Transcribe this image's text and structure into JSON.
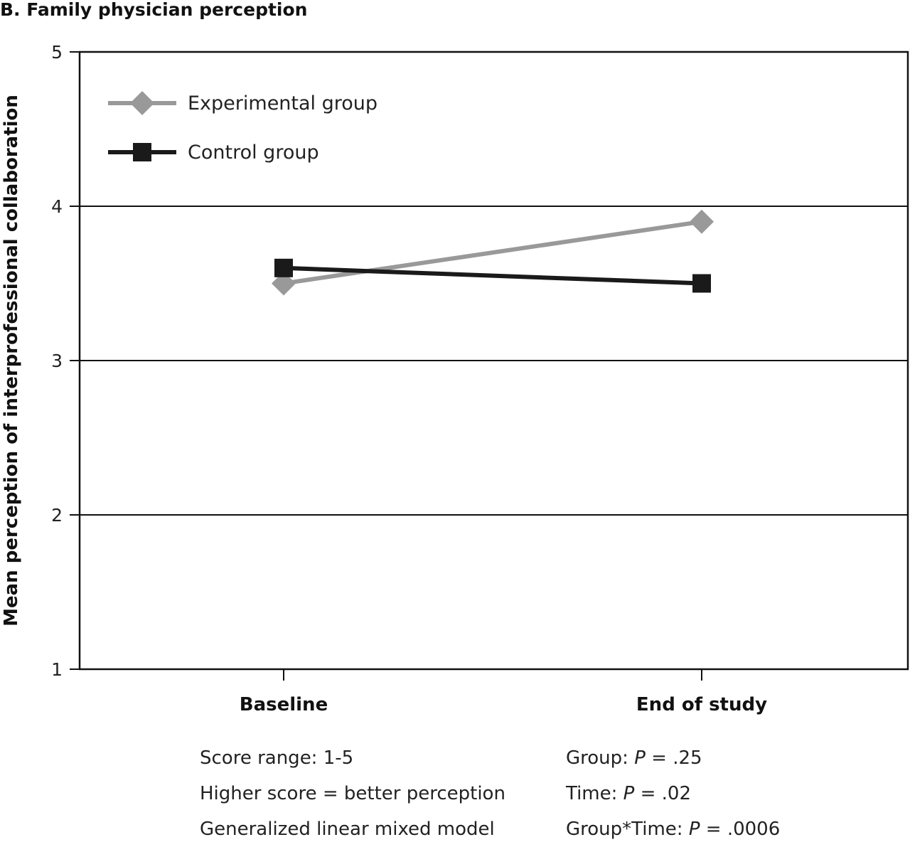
{
  "chart_data": {
    "type": "line",
    "title": "B. Family physician perception",
    "ylabel": "Mean perception of interprofessional collaboration",
    "xlabel": "",
    "categories": [
      "Baseline",
      "End of study"
    ],
    "ylim": [
      1,
      5
    ],
    "yticks": [
      1,
      2,
      3,
      4,
      5
    ],
    "grid": true,
    "legend_position": "top-left",
    "series": [
      {
        "name": "Experimental group",
        "values": [
          3.5,
          3.9
        ],
        "color": "#999999",
        "marker": "diamond"
      },
      {
        "name": "Control group",
        "values": [
          3.6,
          3.5
        ],
        "color": "#1a1a1a",
        "marker": "square"
      }
    ]
  },
  "notes": {
    "left": [
      "Score range: 1-5",
      "Higher score = better perception",
      "Generalized linear mixed model"
    ],
    "right": [
      {
        "label": "Group: ",
        "p": "P",
        "value": " = .25"
      },
      {
        "label": "Time: ",
        "p": "P",
        "value": " = .02"
      },
      {
        "label": "Group*Time: ",
        "p": "P",
        "value": " = .0006"
      }
    ]
  }
}
